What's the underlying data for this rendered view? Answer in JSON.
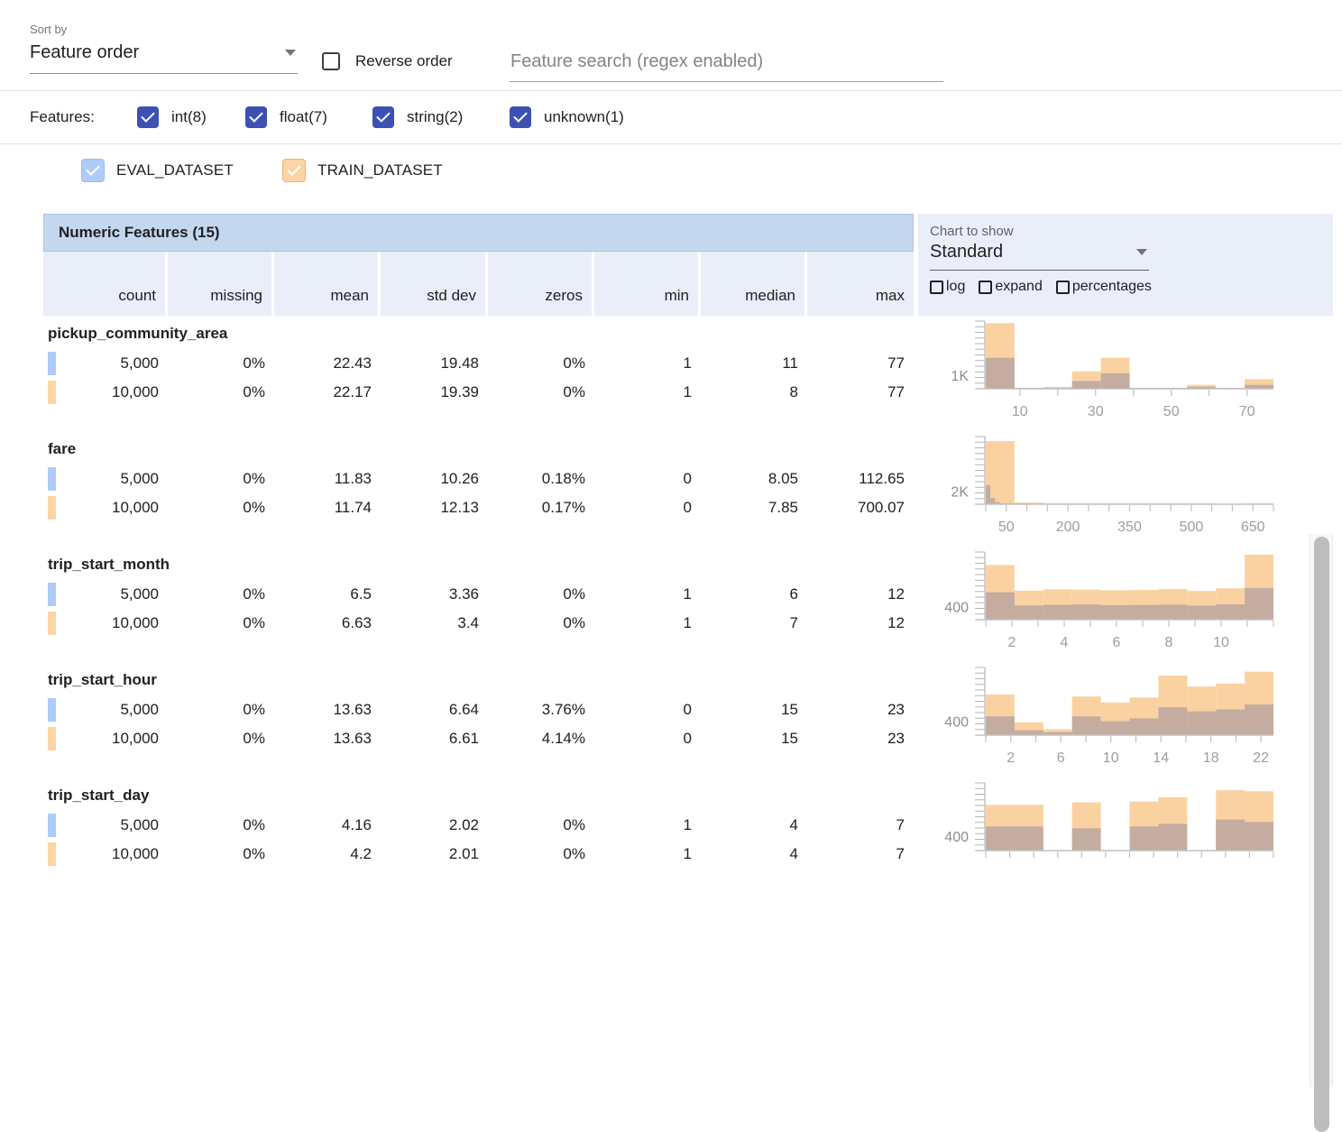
{
  "sort": {
    "label": "Sort by",
    "value": "Feature order"
  },
  "reverse_label": "Reverse order",
  "search": {
    "placeholder": "Feature search (regex enabled)"
  },
  "features_filter": {
    "label": "Features:",
    "items": [
      {
        "label": "int(8)",
        "checked": true
      },
      {
        "label": "float(7)",
        "checked": true
      },
      {
        "label": "string(2)",
        "checked": true
      },
      {
        "label": "unknown(1)",
        "checked": true
      }
    ]
  },
  "datasets": [
    {
      "name": "EVAL_DATASET",
      "color": "#aecbfa",
      "checked": true
    },
    {
      "name": "TRAIN_DATASET",
      "color": "#fbd5a4",
      "checked": true
    }
  ],
  "chart_controls": {
    "label": "Chart to show",
    "value": "Standard",
    "options": [
      {
        "label": "log",
        "checked": false
      },
      {
        "label": "expand",
        "checked": false
      },
      {
        "label": "percentages",
        "checked": false
      }
    ]
  },
  "table": {
    "title": "Numeric Features (15)",
    "columns": [
      "count",
      "missing",
      "mean",
      "std dev",
      "zeros",
      "min",
      "median",
      "max"
    ],
    "features": [
      {
        "name": "pickup_community_area",
        "rows": [
          {
            "dataset": "EVAL_DATASET",
            "values": [
              "5,000",
              "0%",
              "22.43",
              "19.48",
              "0%",
              "1",
              "11",
              "77"
            ]
          },
          {
            "dataset": "TRAIN_DATASET",
            "values": [
              "10,000",
              "0%",
              "22.17",
              "19.39",
              "0%",
              "1",
              "8",
              "77"
            ]
          }
        ]
      },
      {
        "name": "fare",
        "rows": [
          {
            "dataset": "EVAL_DATASET",
            "values": [
              "5,000",
              "0%",
              "11.83",
              "10.26",
              "0.18%",
              "0",
              "8.05",
              "112.65"
            ]
          },
          {
            "dataset": "TRAIN_DATASET",
            "values": [
              "10,000",
              "0%",
              "11.74",
              "12.13",
              "0.17%",
              "0",
              "7.85",
              "700.07"
            ]
          }
        ]
      },
      {
        "name": "trip_start_month",
        "rows": [
          {
            "dataset": "EVAL_DATASET",
            "values": [
              "5,000",
              "0%",
              "6.5",
              "3.36",
              "0%",
              "1",
              "6",
              "12"
            ]
          },
          {
            "dataset": "TRAIN_DATASET",
            "values": [
              "10,000",
              "0%",
              "6.63",
              "3.4",
              "0%",
              "1",
              "7",
              "12"
            ]
          }
        ]
      },
      {
        "name": "trip_start_hour",
        "rows": [
          {
            "dataset": "EVAL_DATASET",
            "values": [
              "5,000",
              "0%",
              "13.63",
              "6.64",
              "3.76%",
              "0",
              "15",
              "23"
            ]
          },
          {
            "dataset": "TRAIN_DATASET",
            "values": [
              "10,000",
              "0%",
              "13.63",
              "6.61",
              "4.14%",
              "0",
              "15",
              "23"
            ]
          }
        ]
      },
      {
        "name": "trip_start_day",
        "rows": [
          {
            "dataset": "EVAL_DATASET",
            "values": [
              "5,000",
              "0%",
              "4.16",
              "2.02",
              "0%",
              "1",
              "4",
              "7"
            ]
          },
          {
            "dataset": "TRAIN_DATASET",
            "values": [
              "10,000",
              "0%",
              "4.2",
              "2.01",
              "0%",
              "1",
              "4",
              "7"
            ]
          }
        ]
      }
    ]
  },
  "chart_data": [
    {
      "feature": "pickup_community_area",
      "type": "bar",
      "xmin": 1,
      "xmax": 77,
      "ymax": 5000,
      "ylabel": {
        "text": "1K",
        "value": 1000
      },
      "xticks": [
        10,
        20,
        30,
        40,
        50,
        60,
        70
      ],
      "xtick_labels": [
        10,
        30,
        50,
        70
      ],
      "series": [
        {
          "name": "TRAIN_DATASET",
          "color": "#fad2a2",
          "values": [
            4850,
            70,
            140,
            1290,
            2290,
            70,
            70,
            290,
            70,
            715
          ]
        },
        {
          "name": "EVAL_DATASET",
          "color": "#c4aca0",
          "values": [
            2290,
            30,
            60,
            570,
            1140,
            30,
            30,
            140,
            30,
            290
          ]
        }
      ]
    },
    {
      "feature": "fare",
      "type": "bar",
      "xmin": 0,
      "xmax": 700,
      "ymax": 10400,
      "ylabel": {
        "text": "2K",
        "value": 2000
      },
      "xticks": [
        0,
        50,
        100,
        150,
        200,
        250,
        300,
        350,
        400,
        450,
        500,
        550,
        600,
        650,
        700
      ],
      "xtick_labels": [
        50,
        200,
        350,
        500,
        650
      ],
      "series": [
        {
          "name": "TRAIN_DATASET",
          "color": "#fad2a2",
          "values": [
            9700,
            250,
            30,
            10,
            5,
            2,
            1,
            1,
            0,
            2
          ]
        },
        {
          "name": "EVAL_DATASET",
          "color": "#c4aca0",
          "xmin": 0,
          "xmax": 112.65,
          "values": [
            2950,
            950,
            350,
            150,
            70,
            35,
            18,
            9,
            5,
            3
          ]
        }
      ]
    },
    {
      "feature": "trip_start_month",
      "type": "bar",
      "xmin": 1,
      "xmax": 12,
      "ymax": 2050,
      "ylabel": {
        "text": "400",
        "value": 400
      },
      "xticks": [
        1,
        2,
        3,
        4,
        5,
        6,
        7,
        8,
        9,
        10,
        11,
        12
      ],
      "xtick_labels": [
        2,
        4,
        6,
        8,
        10
      ],
      "series": [
        {
          "name": "TRAIN_DATASET",
          "color": "#fad2a2",
          "values": [
            1660,
            880,
            920,
            910,
            890,
            900,
            930,
            870,
            950,
            1970
          ]
        },
        {
          "name": "EVAL_DATASET",
          "color": "#c4aca0",
          "values": [
            830,
            430,
            450,
            460,
            440,
            445,
            455,
            425,
            465,
            960
          ]
        }
      ]
    },
    {
      "feature": "trip_start_hour",
      "type": "bar",
      "xmin": 0,
      "xmax": 23,
      "ymax": 1950,
      "ylabel": {
        "text": "400",
        "value": 400
      },
      "xticks": [
        0,
        2,
        4,
        6,
        8,
        10,
        12,
        14,
        16,
        18,
        20,
        22
      ],
      "xtick_labels": [
        2,
        6,
        10,
        14,
        18,
        22
      ],
      "series": [
        {
          "name": "TRAIN_DATASET",
          "color": "#fad2a2",
          "values": [
            1170,
            370,
            170,
            1115,
            940,
            1085,
            1715,
            1400,
            1485,
            1830
          ]
        },
        {
          "name": "EVAL_DATASET",
          "color": "#c4aca0",
          "values": [
            540,
            140,
            85,
            540,
            400,
            485,
            800,
            685,
            740,
            885
          ]
        }
      ]
    },
    {
      "feature": "trip_start_day",
      "type": "bar",
      "xmin": 1,
      "xmax": 7,
      "ymax": 1850,
      "ylabel": {
        "text": "400",
        "value": 400
      },
      "xticks": [
        1,
        1.5,
        2,
        2.5,
        3,
        3.5,
        4,
        4.5,
        5,
        5.5,
        6,
        6.5,
        7
      ],
      "xtick_labels": [],
      "series": [
        {
          "name": "TRAIN_DATASET",
          "color": "#fad2a2",
          "values": [
            1250,
            1250,
            0,
            1320,
            0,
            1340,
            1460,
            0,
            1650,
            1620
          ]
        },
        {
          "name": "EVAL_DATASET",
          "color": "#c4aca0",
          "values": [
            660,
            660,
            0,
            610,
            0,
            660,
            730,
            0,
            850,
            780
          ]
        }
      ]
    }
  ],
  "colors": {
    "checkbox_indigo": "#3d51b5",
    "eval_blue": "#aecbfa",
    "train_orange": "#fbd5a4",
    "table_title_bg": "#c3d7ee",
    "stats_header_bg": "#e9eef8",
    "hist_train": "#fad2a2",
    "hist_overlap": "#c4aca0",
    "axis_gray": "#bdbdbd"
  }
}
